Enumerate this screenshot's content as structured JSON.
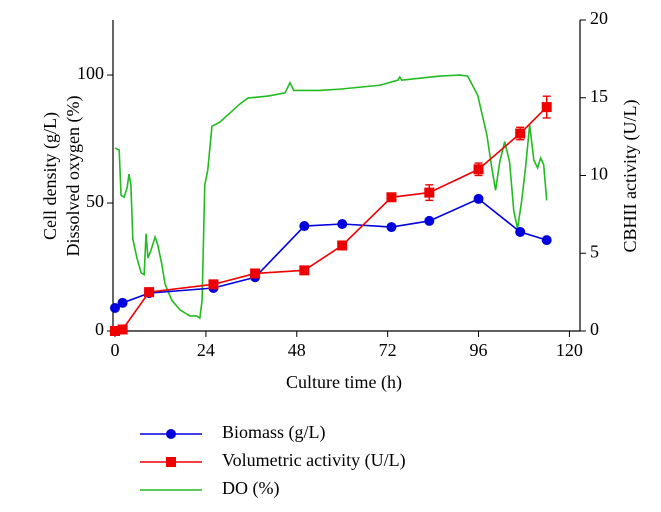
{
  "chart_data": {
    "type": "line",
    "x_label": "Culture time (h)",
    "y_label": [
      "Cell density (g/L)",
      "Dissolved oxygen (%)"
    ],
    "y2_label": "CBHII activity (U/L)",
    "xlim": [
      0,
      122
    ],
    "xticks": [
      0,
      24,
      48,
      72,
      96,
      120
    ],
    "ylim": [
      0,
      121.5
    ],
    "yticks": [
      0,
      50,
      100
    ],
    "y2lim": [
      0,
      20
    ],
    "y2ticks": [
      0,
      5,
      10,
      15,
      20
    ],
    "series": [
      {
        "name": "Biomass (g/L)",
        "color": "#0000dd",
        "marker": "circle",
        "x": [
          0,
          2,
          9,
          26,
          37,
          50,
          60,
          73,
          83,
          96,
          107,
          114
        ],
        "values": [
          9,
          11,
          14.8,
          16.8,
          21,
          41,
          41.8,
          40.6,
          43,
          51.6,
          38.7,
          35.5
        ]
      },
      {
        "name": "Volumetric activity (U/L)",
        "color": "#ee0000",
        "marker": "square",
        "axis": "y2",
        "x": [
          0,
          2,
          9,
          26,
          37,
          50,
          60,
          73,
          83,
          96,
          107,
          114
        ],
        "values": [
          0,
          0.1,
          2.5,
          3.0,
          3.7,
          3.9,
          5.5,
          8.6,
          8.9,
          10.4,
          12.7,
          14.4
        ],
        "errors": [
          0,
          0,
          0.1,
          0.1,
          0.1,
          0.1,
          0.1,
          0.2,
          0.5,
          0.4,
          0.4,
          0.7
        ]
      },
      {
        "name": "DO (%)",
        "color": "#22bb22",
        "marker": "none",
        "x": [
          0,
          1.1,
          1.6,
          2.4,
          3.2,
          3.7,
          4.2,
          4.7,
          5.8,
          6.9,
          7.7,
          8.2,
          8.7,
          9.5,
          10.6,
          11.3,
          12.4,
          13.2,
          15,
          17.2,
          19.8,
          21.6,
          22.4,
          23,
          23.7,
          24.5,
          25.6,
          27.7,
          29.8,
          31.7,
          33,
          35.1,
          40.4,
          44.9,
          46.2,
          47.2,
          54.1,
          59.4,
          69.9,
          74.7,
          75.2,
          75.7,
          85.8,
          91,
          93.1,
          93.7,
          95.8,
          98.2,
          99.5,
          100.5,
          101.6,
          102.9,
          104.2,
          105.3,
          106.3,
          107.4,
          108.4,
          109.5,
          110.6,
          111.6,
          112.4,
          113.2,
          114
        ],
        "values": [
          71.5,
          70.7,
          53,
          52.3,
          56,
          61.3,
          57,
          36,
          28.5,
          22.7,
          22,
          38,
          28.5,
          31.6,
          36.7,
          33.6,
          25.8,
          18.4,
          12,
          8.2,
          5.9,
          5.9,
          5,
          12,
          57,
          62.9,
          80,
          81.6,
          84.4,
          87,
          88.7,
          91,
          91.8,
          93,
          97,
          94,
          94,
          94.5,
          96,
          98,
          99.2,
          98,
          99.6,
          100,
          99.6,
          98,
          92,
          76.6,
          63.7,
          55,
          66,
          74,
          66,
          47,
          40,
          51,
          63.7,
          80.5,
          66.8,
          63.7,
          67.6,
          65,
          51
        ]
      }
    ]
  }
}
